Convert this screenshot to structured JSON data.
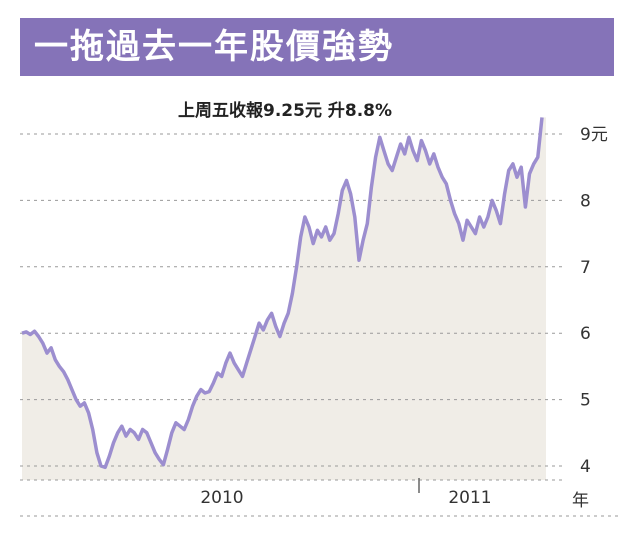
{
  "header": {
    "title": "一拖過去一年股價強勢"
  },
  "colors": {
    "banner": "#8573b8",
    "line": "#9c8ecf",
    "fill": "#f0ede7",
    "grid": "#9a9a9a"
  },
  "chart_data": {
    "type": "area",
    "title": "一拖過去一年股價強勢",
    "annotation": "上周五收報9.25元 升8.8%",
    "y_ticks": [
      "9元",
      "8",
      "7",
      "6",
      "5",
      "4"
    ],
    "y_tick_values": [
      9,
      8,
      7,
      6,
      5,
      4
    ],
    "x_ticks": [
      "2010",
      "2011"
    ],
    "x_unit_label": "年",
    "ylim": [
      4,
      9
    ],
    "grid": true,
    "values": [
      6.0,
      6.02,
      5.98,
      6.03,
      5.95,
      5.85,
      5.7,
      5.78,
      5.6,
      5.5,
      5.42,
      5.3,
      5.15,
      5.0,
      4.9,
      4.95,
      4.8,
      4.55,
      4.2,
      4.0,
      3.98,
      4.15,
      4.35,
      4.5,
      4.6,
      4.45,
      4.55,
      4.5,
      4.4,
      4.55,
      4.5,
      4.35,
      4.2,
      4.1,
      4.02,
      4.25,
      4.5,
      4.65,
      4.6,
      4.55,
      4.7,
      4.9,
      5.05,
      5.15,
      5.1,
      5.12,
      5.25,
      5.4,
      5.35,
      5.55,
      5.7,
      5.55,
      5.45,
      5.35,
      5.55,
      5.75,
      5.95,
      6.15,
      6.05,
      6.2,
      6.3,
      6.1,
      5.95,
      6.15,
      6.3,
      6.6,
      7.0,
      7.45,
      7.75,
      7.6,
      7.35,
      7.55,
      7.45,
      7.6,
      7.4,
      7.5,
      7.8,
      8.15,
      8.3,
      8.1,
      7.75,
      7.1,
      7.4,
      7.65,
      8.2,
      8.65,
      8.95,
      8.75,
      8.55,
      8.45,
      8.65,
      8.85,
      8.7,
      8.95,
      8.75,
      8.6,
      8.9,
      8.75,
      8.55,
      8.7,
      8.5,
      8.35,
      8.25,
      8.0,
      7.8,
      7.65,
      7.4,
      7.7,
      7.6,
      7.5,
      7.75,
      7.6,
      7.75,
      8.0,
      7.85,
      7.65,
      8.1,
      8.45,
      8.55,
      8.35,
      8.5,
      7.9,
      8.4,
      8.55,
      8.65,
      9.25
    ]
  }
}
